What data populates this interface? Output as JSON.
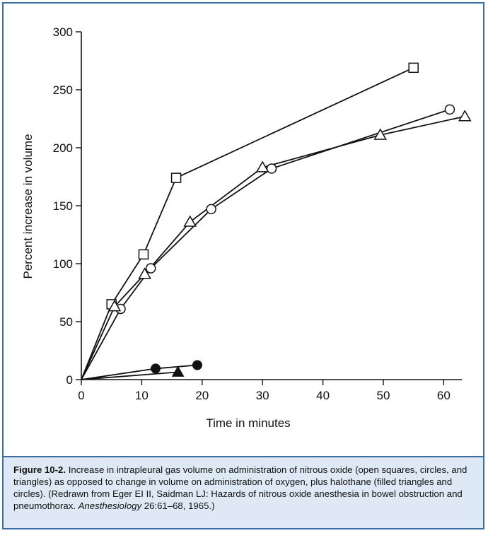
{
  "chart_data": {
    "type": "line",
    "title": "",
    "xlabel": "Time in minutes",
    "ylabel": "Percent increase in volume",
    "xlim": [
      0,
      63
    ],
    "ylim": [
      0,
      300
    ],
    "x_ticks": [
      0,
      10,
      20,
      30,
      40,
      50,
      60
    ],
    "y_ticks": [
      0,
      50,
      100,
      150,
      200,
      250,
      300
    ],
    "grid": false,
    "series": [
      {
        "marker": "open-square",
        "color": "#111111",
        "points": [
          [
            0,
            0
          ],
          [
            5,
            65
          ],
          [
            10.3,
            108
          ],
          [
            15.7,
            174
          ],
          [
            55,
            269
          ]
        ]
      },
      {
        "marker": "open-circle",
        "color": "#111111",
        "points": [
          [
            0,
            0
          ],
          [
            6.5,
            61
          ],
          [
            11.5,
            96
          ],
          [
            21.5,
            147
          ],
          [
            31.5,
            182
          ],
          [
            61,
            233
          ]
        ]
      },
      {
        "marker": "open-triangle",
        "color": "#111111",
        "points": [
          [
            0,
            0
          ],
          [
            5.5,
            63
          ],
          [
            10.5,
            91
          ],
          [
            18,
            136
          ],
          [
            30,
            183
          ],
          [
            49.5,
            211
          ],
          [
            63.5,
            227
          ]
        ]
      },
      {
        "marker": "filled-circle",
        "color": "#111111",
        "points": [
          [
            0,
            0
          ],
          [
            12.3,
            9.5
          ],
          [
            19.2,
            12.5
          ]
        ]
      },
      {
        "marker": "filled-triangle",
        "color": "#111111",
        "points": [
          [
            0,
            0
          ],
          [
            16,
            6.5
          ]
        ]
      }
    ]
  },
  "caption": {
    "label": "Figure 10-2.",
    "text_part1": " Increase in intrapleural gas volume on administration of nitrous oxide (open squares, circles, and triangles) as opposed to change in volume on administration of oxygen, plus halothane (filled triangles and circles). (Redrawn from Eger EI II, Saidman LJ: Hazards of nitrous oxide anesthesia in bowel obstruction and pneumothorax. ",
    "journal": "Anesthesiology",
    "text_part2": " 26:61–68, 1965.)"
  },
  "colors": {
    "frame": "#3a6ea5",
    "caption_bg": "#dfe9f5",
    "ink": "#111111"
  }
}
